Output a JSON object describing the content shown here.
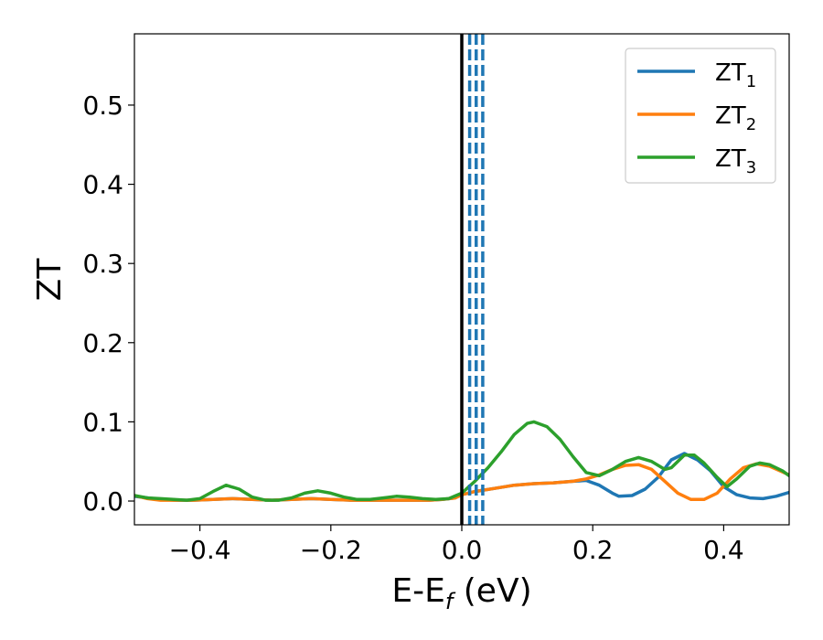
{
  "chart_data": {
    "type": "line",
    "xlim": [
      -0.5,
      0.5
    ],
    "ylim": [
      -0.03,
      0.59
    ],
    "xticks": [
      -0.4,
      -0.2,
      0.0,
      0.2,
      0.4
    ],
    "xtick_labels": [
      "−0.4",
      "−0.2",
      "0.0",
      "0.2",
      "0.4"
    ],
    "yticks": [
      0.0,
      0.1,
      0.2,
      0.3,
      0.4,
      0.5
    ],
    "ytick_labels": [
      "0.0",
      "0.1",
      "0.2",
      "0.3",
      "0.4",
      "0.5"
    ],
    "xlabel": {
      "main": "E-E",
      "sub": "f",
      "tail": " (eV)"
    },
    "ylabel": "ZT",
    "legend_position": "top-right",
    "grid": false,
    "vlines": [
      {
        "x": 0.0,
        "color": "#000000",
        "style": "solid"
      },
      {
        "x": 0.012,
        "color": "#1f77b4",
        "style": "dashed"
      },
      {
        "x": 0.022,
        "color": "#1f77b4",
        "style": "dashed"
      },
      {
        "x": 0.032,
        "color": "#1f77b4",
        "style": "dashed"
      }
    ],
    "series": [
      {
        "name": "ZT",
        "sub": "1",
        "color": "#1f77b4",
        "points": [
          [
            -0.5,
            0.006
          ],
          [
            -0.47,
            0.003
          ],
          [
            -0.44,
            0.001
          ],
          [
            -0.41,
            0.001
          ],
          [
            -0.38,
            0.002
          ],
          [
            -0.35,
            0.003
          ],
          [
            -0.32,
            0.002
          ],
          [
            -0.29,
            0.001
          ],
          [
            -0.26,
            0.002
          ],
          [
            -0.23,
            0.003
          ],
          [
            -0.2,
            0.002
          ],
          [
            -0.17,
            0.001
          ],
          [
            -0.14,
            0.001
          ],
          [
            -0.11,
            0.001
          ],
          [
            -0.08,
            0.001
          ],
          [
            -0.05,
            0.001
          ],
          [
            -0.03,
            0.002
          ],
          [
            -0.01,
            0.004
          ],
          [
            0.0,
            0.008
          ],
          [
            0.02,
            0.012
          ],
          [
            0.05,
            0.016
          ],
          [
            0.08,
            0.02
          ],
          [
            0.11,
            0.022
          ],
          [
            0.14,
            0.023
          ],
          [
            0.17,
            0.025
          ],
          [
            0.19,
            0.026
          ],
          [
            0.21,
            0.02
          ],
          [
            0.23,
            0.01
          ],
          [
            0.24,
            0.006
          ],
          [
            0.26,
            0.007
          ],
          [
            0.28,
            0.015
          ],
          [
            0.3,
            0.03
          ],
          [
            0.32,
            0.052
          ],
          [
            0.34,
            0.06
          ],
          [
            0.36,
            0.052
          ],
          [
            0.38,
            0.038
          ],
          [
            0.4,
            0.018
          ],
          [
            0.42,
            0.008
          ],
          [
            0.44,
            0.004
          ],
          [
            0.46,
            0.003
          ],
          [
            0.48,
            0.006
          ],
          [
            0.5,
            0.011
          ]
        ]
      },
      {
        "name": "ZT",
        "sub": "2",
        "color": "#ff7f0e",
        "points": [
          [
            -0.5,
            0.007
          ],
          [
            -0.48,
            0.003
          ],
          [
            -0.46,
            0.001
          ],
          [
            -0.44,
            0.001
          ],
          [
            -0.41,
            0.001
          ],
          [
            -0.38,
            0.002
          ],
          [
            -0.35,
            0.003
          ],
          [
            -0.32,
            0.002
          ],
          [
            -0.29,
            0.001
          ],
          [
            -0.26,
            0.002
          ],
          [
            -0.23,
            0.003
          ],
          [
            -0.2,
            0.002
          ],
          [
            -0.17,
            0.001
          ],
          [
            -0.14,
            0.001
          ],
          [
            -0.11,
            0.001
          ],
          [
            -0.08,
            0.001
          ],
          [
            -0.05,
            0.001
          ],
          [
            -0.03,
            0.002
          ],
          [
            -0.01,
            0.004
          ],
          [
            0.0,
            0.008
          ],
          [
            0.02,
            0.012
          ],
          [
            0.05,
            0.016
          ],
          [
            0.08,
            0.02
          ],
          [
            0.11,
            0.022
          ],
          [
            0.14,
            0.023
          ],
          [
            0.17,
            0.025
          ],
          [
            0.19,
            0.028
          ],
          [
            0.21,
            0.033
          ],
          [
            0.23,
            0.04
          ],
          [
            0.25,
            0.045
          ],
          [
            0.27,
            0.046
          ],
          [
            0.29,
            0.04
          ],
          [
            0.31,
            0.025
          ],
          [
            0.33,
            0.01
          ],
          [
            0.35,
            0.002
          ],
          [
            0.37,
            0.002
          ],
          [
            0.39,
            0.01
          ],
          [
            0.41,
            0.028
          ],
          [
            0.43,
            0.042
          ],
          [
            0.45,
            0.047
          ],
          [
            0.47,
            0.044
          ],
          [
            0.5,
            0.033
          ]
        ]
      },
      {
        "name": "ZT",
        "sub": "3",
        "color": "#2ca02c",
        "points": [
          [
            -0.5,
            0.007
          ],
          [
            -0.48,
            0.004
          ],
          [
            -0.46,
            0.003
          ],
          [
            -0.44,
            0.002
          ],
          [
            -0.42,
            0.001
          ],
          [
            -0.4,
            0.003
          ],
          [
            -0.38,
            0.012
          ],
          [
            -0.36,
            0.02
          ],
          [
            -0.34,
            0.015
          ],
          [
            -0.32,
            0.005
          ],
          [
            -0.3,
            0.001
          ],
          [
            -0.28,
            0.001
          ],
          [
            -0.26,
            0.004
          ],
          [
            -0.24,
            0.01
          ],
          [
            -0.22,
            0.013
          ],
          [
            -0.2,
            0.01
          ],
          [
            -0.18,
            0.005
          ],
          [
            -0.16,
            0.002
          ],
          [
            -0.14,
            0.002
          ],
          [
            -0.12,
            0.004
          ],
          [
            -0.1,
            0.006
          ],
          [
            -0.08,
            0.005
          ],
          [
            -0.06,
            0.003
          ],
          [
            -0.04,
            0.002
          ],
          [
            -0.02,
            0.003
          ],
          [
            0.0,
            0.01
          ],
          [
            0.02,
            0.025
          ],
          [
            0.04,
            0.042
          ],
          [
            0.06,
            0.062
          ],
          [
            0.08,
            0.084
          ],
          [
            0.1,
            0.098
          ],
          [
            0.11,
            0.1
          ],
          [
            0.13,
            0.094
          ],
          [
            0.15,
            0.078
          ],
          [
            0.17,
            0.056
          ],
          [
            0.19,
            0.036
          ],
          [
            0.21,
            0.032
          ],
          [
            0.23,
            0.04
          ],
          [
            0.25,
            0.05
          ],
          [
            0.27,
            0.055
          ],
          [
            0.29,
            0.05
          ],
          [
            0.31,
            0.04
          ],
          [
            0.32,
            0.042
          ],
          [
            0.34,
            0.058
          ],
          [
            0.355,
            0.058
          ],
          [
            0.37,
            0.048
          ],
          [
            0.39,
            0.03
          ],
          [
            0.405,
            0.018
          ],
          [
            0.42,
            0.028
          ],
          [
            0.44,
            0.044
          ],
          [
            0.455,
            0.048
          ],
          [
            0.47,
            0.046
          ],
          [
            0.49,
            0.038
          ],
          [
            0.5,
            0.032
          ]
        ]
      }
    ]
  }
}
